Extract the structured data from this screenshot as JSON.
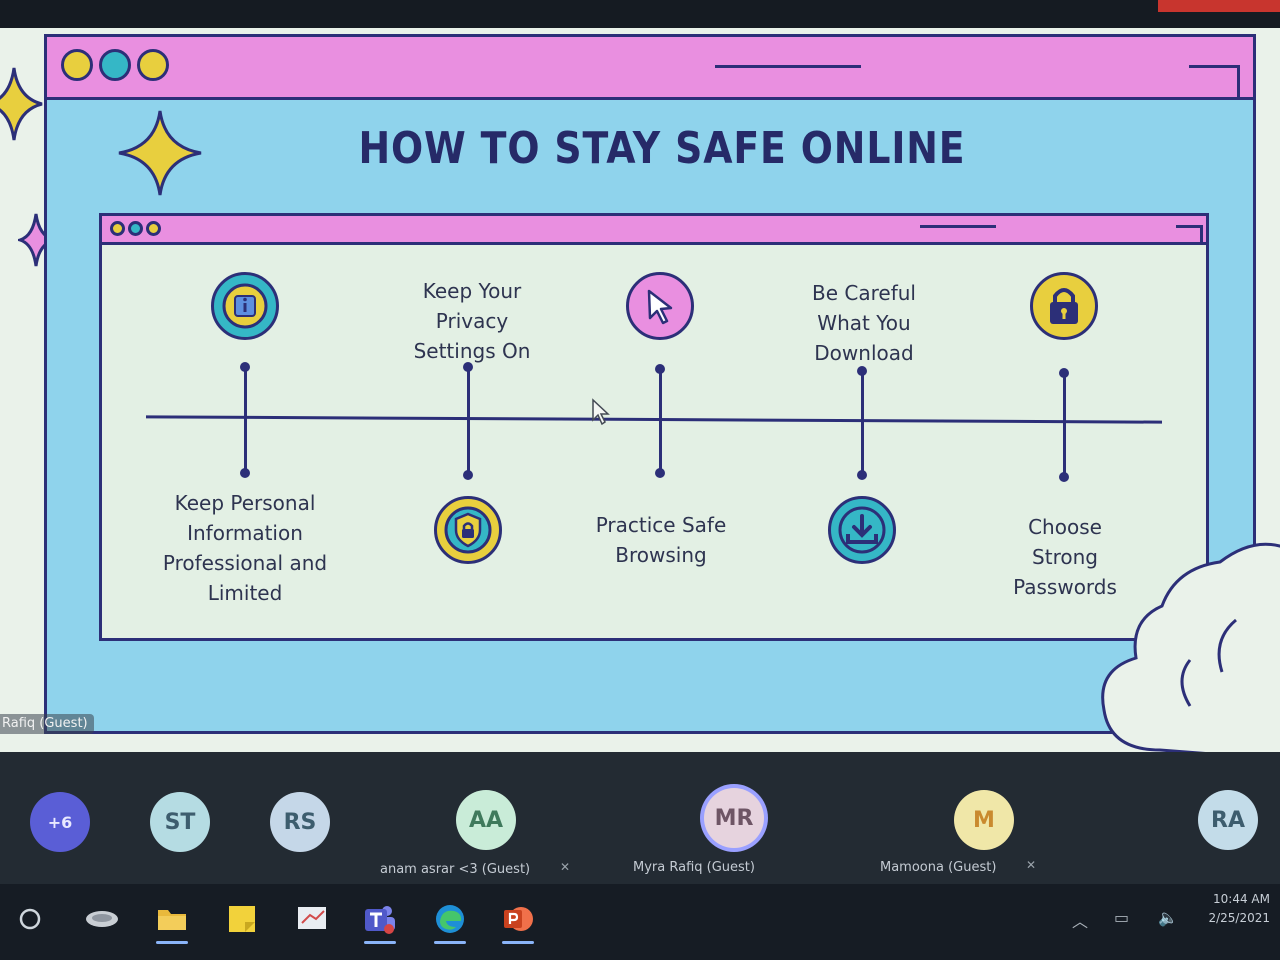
{
  "slide": {
    "title": "HOW TO STAY SAFE ONLINE",
    "timeline": [
      {
        "label": "Keep Personal Information Professional and Limited",
        "icon": "info-icon",
        "position": "below"
      },
      {
        "label": "Keep Your Privacy Settings On",
        "icon": "shield-lock-icon",
        "position": "above"
      },
      {
        "label": "Practice Safe Browsing",
        "icon": "cursor-icon",
        "position": "below"
      },
      {
        "label": "Be Careful What You Download",
        "icon": "download-icon",
        "position": "above"
      },
      {
        "label": "Choose Strong Passwords",
        "icon": "padlock-icon",
        "position": "below"
      }
    ],
    "colors": {
      "background": "#8fd3ec",
      "titlebar": "#e98fe0",
      "panel": "#e3f0e4",
      "outline": "#2c2f78",
      "title_text": "#262a68",
      "sparkle": "#e8cf3e"
    }
  },
  "presenter_tag": "Rafiq (Guest)",
  "participants": [
    {
      "initials": "+6",
      "name": "",
      "color": "#5a5ed6"
    },
    {
      "initials": "ST",
      "name": "",
      "color": "#b5dce3"
    },
    {
      "initials": "RS",
      "name": "",
      "color": "#c5d7e8"
    },
    {
      "initials": "AA",
      "name": "anam asrar <3 (Guest)",
      "color": "#c9ecd8",
      "muted": true
    },
    {
      "initials": "MR",
      "name": "Myra Rafiq (Guest)",
      "color": "#e6d3de",
      "speaking": true
    },
    {
      "initials": "M",
      "name": "Mamoona (Guest)",
      "color": "#f0e7a8",
      "muted": true
    },
    {
      "initials": "RA",
      "name": "",
      "color": "#c3dce9"
    }
  ],
  "taskbar": {
    "apps": [
      "search-circle-icon",
      "cortana-icon",
      "file-explorer-icon",
      "sticky-notes-icon",
      "whiteboard-icon",
      "teams-icon",
      "edge-icon",
      "powerpoint-icon"
    ],
    "clock": {
      "time": "10:44 AM",
      "date": "2/25/2021"
    }
  }
}
